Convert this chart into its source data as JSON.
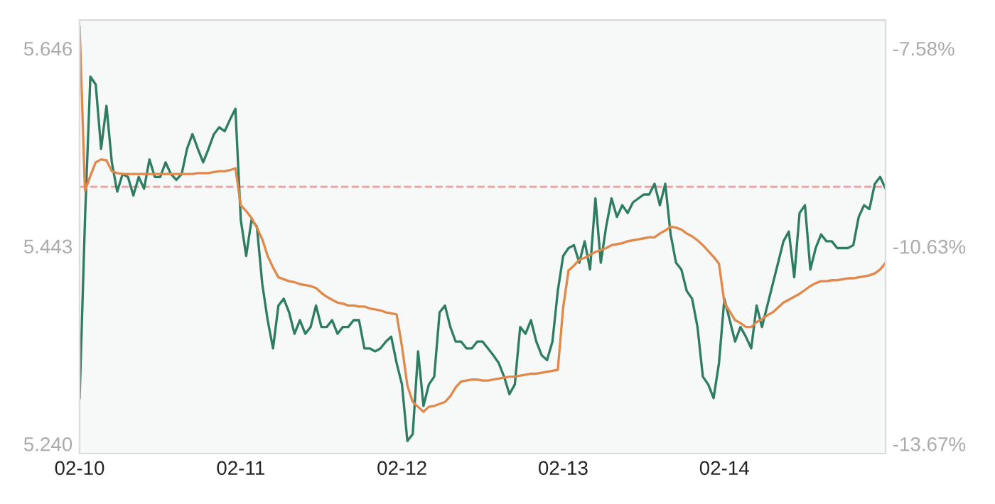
{
  "chart_data": {
    "type": "line",
    "categories": [
      "02-10",
      null,
      null,
      null,
      null,
      null,
      null,
      null,
      null,
      null,
      null,
      null,
      null,
      null,
      null,
      null,
      null,
      null,
      null,
      null,
      null,
      null,
      null,
      null,
      null,
      null,
      null,
      null,
      null,
      null,
      "02-11",
      null,
      null,
      null,
      null,
      null,
      null,
      null,
      null,
      null,
      null,
      null,
      null,
      null,
      null,
      null,
      null,
      null,
      null,
      null,
      null,
      null,
      null,
      null,
      null,
      null,
      null,
      null,
      null,
      null,
      "02-12",
      null,
      null,
      null,
      null,
      null,
      null,
      null,
      null,
      null,
      null,
      null,
      null,
      null,
      null,
      null,
      null,
      null,
      null,
      null,
      null,
      null,
      null,
      null,
      null,
      null,
      null,
      null,
      null,
      null,
      "02-13",
      null,
      null,
      null,
      null,
      null,
      null,
      null,
      null,
      null,
      null,
      null,
      null,
      null,
      null,
      null,
      null,
      null,
      null,
      null,
      null,
      null,
      null,
      null,
      null,
      null,
      null,
      null,
      null,
      null,
      "02-14",
      null,
      null,
      null,
      null,
      null,
      null,
      null,
      null,
      null,
      null,
      null,
      null,
      null,
      null,
      null,
      null,
      null,
      null,
      null,
      null,
      null,
      null,
      null,
      null,
      null,
      null,
      null,
      null,
      null,
      null
    ],
    "ylim": [
      5.23,
      5.675
    ],
    "yticks": [
      {
        "value": 5.24,
        "label": "5.240"
      },
      {
        "value": 5.443,
        "label": "5.443"
      },
      {
        "value": 5.646,
        "label": "5.646"
      }
    ],
    "y2lim": [
      -13.82,
      -7.145
    ],
    "y2ticks": [
      {
        "value": -13.67,
        "label": "-13.67%"
      },
      {
        "value": -10.63,
        "label": "-10.63%"
      },
      {
        "value": -7.58,
        "label": "-7.58%"
      }
    ],
    "grid": false,
    "legend": false,
    "ref_lines": [
      {
        "axis": "y",
        "value": 5.504,
        "color": "#e8a0a0",
        "line_style": "dashed"
      }
    ],
    "series": [
      {
        "color": "#2e7d62",
        "values": [
          5.287,
          5.47,
          5.617,
          5.609,
          5.543,
          5.587,
          5.529,
          5.499,
          5.517,
          5.514,
          5.495,
          5.514,
          5.502,
          5.532,
          5.514,
          5.514,
          5.529,
          5.517,
          5.511,
          5.517,
          5.543,
          5.558,
          5.543,
          5.529,
          5.543,
          5.558,
          5.565,
          5.561,
          5.573,
          5.584,
          5.47,
          5.433,
          5.47,
          5.463,
          5.404,
          5.367,
          5.338,
          5.382,
          5.389,
          5.375,
          5.353,
          5.367,
          5.353,
          5.36,
          5.382,
          5.36,
          5.36,
          5.367,
          5.353,
          5.36,
          5.36,
          5.367,
          5.367,
          5.338,
          5.338,
          5.335,
          5.338,
          5.345,
          5.35,
          5.323,
          5.301,
          5.243,
          5.25,
          5.335,
          5.279,
          5.301,
          5.309,
          5.375,
          5.382,
          5.36,
          5.345,
          5.345,
          5.338,
          5.338,
          5.345,
          5.345,
          5.338,
          5.331,
          5.323,
          5.309,
          5.291,
          5.301,
          5.36,
          5.353,
          5.367,
          5.345,
          5.331,
          5.326,
          5.345,
          5.397,
          5.433,
          5.441,
          5.444,
          5.426,
          5.448,
          5.419,
          5.492,
          5.426,
          5.463,
          5.492,
          5.473,
          5.485,
          5.477,
          5.488,
          5.492,
          5.496,
          5.496,
          5.507,
          5.485,
          5.507,
          5.455,
          5.426,
          5.419,
          5.397,
          5.389,
          5.36,
          5.309,
          5.301,
          5.287,
          5.323,
          5.389,
          5.367,
          5.345,
          5.36,
          5.35,
          5.338,
          5.382,
          5.36,
          5.382,
          5.404,
          5.426,
          5.448,
          5.458,
          5.411,
          5.477,
          5.485,
          5.419,
          5.441,
          5.455,
          5.448,
          5.448,
          5.441,
          5.441,
          5.441,
          5.444,
          5.473,
          5.485,
          5.481,
          5.507,
          5.514,
          5.502
        ]
      },
      {
        "color": "#e0894a",
        "values": [
          5.668,
          5.5,
          5.515,
          5.529,
          5.532,
          5.531,
          5.52,
          5.518,
          5.517,
          5.517,
          5.517,
          5.517,
          5.517,
          5.517,
          5.517,
          5.517,
          5.517,
          5.517,
          5.517,
          5.517,
          5.517,
          5.517,
          5.518,
          5.518,
          5.518,
          5.519,
          5.52,
          5.52,
          5.521,
          5.523,
          5.485,
          5.479,
          5.472,
          5.462,
          5.45,
          5.433,
          5.421,
          5.411,
          5.409,
          5.407,
          5.406,
          5.404,
          5.403,
          5.402,
          5.4,
          5.395,
          5.391,
          5.388,
          5.385,
          5.384,
          5.382,
          5.382,
          5.381,
          5.381,
          5.379,
          5.378,
          5.377,
          5.375,
          5.374,
          5.373,
          5.34,
          5.3,
          5.283,
          5.278,
          5.273,
          5.278,
          5.279,
          5.281,
          5.283,
          5.289,
          5.298,
          5.304,
          5.305,
          5.306,
          5.306,
          5.305,
          5.305,
          5.306,
          5.307,
          5.308,
          5.309,
          5.309,
          5.31,
          5.311,
          5.312,
          5.312,
          5.313,
          5.314,
          5.315,
          5.316,
          5.38,
          5.418,
          5.423,
          5.429,
          5.431,
          5.434,
          5.437,
          5.439,
          5.441,
          5.444,
          5.445,
          5.446,
          5.448,
          5.449,
          5.45,
          5.451,
          5.452,
          5.452,
          5.456,
          5.459,
          5.463,
          5.462,
          5.46,
          5.456,
          5.453,
          5.449,
          5.444,
          5.438,
          5.432,
          5.425,
          5.385,
          5.376,
          5.367,
          5.364,
          5.36,
          5.36,
          5.365,
          5.368,
          5.372,
          5.375,
          5.38,
          5.385,
          5.388,
          5.391,
          5.394,
          5.398,
          5.402,
          5.405,
          5.407,
          5.407,
          5.408,
          5.408,
          5.409,
          5.41,
          5.41,
          5.411,
          5.412,
          5.413,
          5.415,
          5.419,
          5.426
        ]
      }
    ]
  }
}
